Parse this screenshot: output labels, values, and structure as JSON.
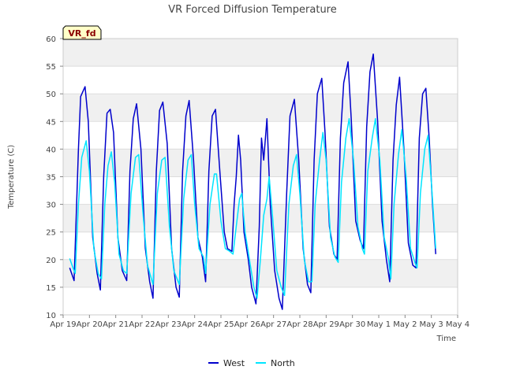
{
  "chart_data": {
    "type": "line",
    "title": "VR Forced Diffusion Temperature",
    "xlabel": "Time",
    "ylabel": "Temperature (C)",
    "badge": "VR_fd",
    "ylim": [
      10,
      60
    ],
    "yticks": [
      10,
      15,
      20,
      25,
      30,
      35,
      40,
      45,
      50,
      55,
      60
    ],
    "xlim": [
      "Apr 19",
      "May 4"
    ],
    "xtick_labels": [
      "Apr 19",
      "Apr 20",
      "Apr 21",
      "Apr 22",
      "Apr 23",
      "Apr 24",
      "Apr 25",
      "Apr 26",
      "Apr 27",
      "Apr 28",
      "Apr 29",
      "Apr 30",
      "May 1",
      "May 2",
      "May 3",
      "May 4"
    ],
    "x_unit": "days",
    "grid": true,
    "legend_position": "bottom",
    "series": [
      {
        "name": "West",
        "color": "#0000cc",
        "points": [
          [
            "2023-04-19 06:00",
            18.5
          ],
          [
            "2023-04-19 10:00",
            16.2
          ],
          [
            "2023-04-19 14:00",
            40
          ],
          [
            "2023-04-19 16:00",
            49.5
          ],
          [
            "2023-04-19 20:00",
            51.3
          ],
          [
            "2023-04-19 23:00",
            45
          ],
          [
            "2023-04-20 03:00",
            24
          ],
          [
            "2023-04-20 07:00",
            17.5
          ],
          [
            "2023-04-20 10:00",
            14.5
          ],
          [
            "2023-04-20 13:00",
            35
          ],
          [
            "2023-04-20 16:00",
            46.5
          ],
          [
            "2023-04-20 19:00",
            47.2
          ],
          [
            "2023-04-20 22:00",
            43
          ],
          [
            "2023-04-21 02:00",
            24
          ],
          [
            "2023-04-21 06:00",
            18
          ],
          [
            "2023-04-21 10:00",
            16.2
          ],
          [
            "2023-04-21 13:00",
            36
          ],
          [
            "2023-04-21 16:00",
            45.5
          ],
          [
            "2023-04-21 19:00",
            48.2
          ],
          [
            "2023-04-21 23:00",
            40
          ],
          [
            "2023-04-22 03:00",
            22
          ],
          [
            "2023-04-22 07:00",
            16
          ],
          [
            "2023-04-22 10:00",
            13
          ],
          [
            "2023-04-22 13:00",
            36
          ],
          [
            "2023-04-22 16:00",
            47
          ],
          [
            "2023-04-22 19:00",
            48.5
          ],
          [
            "2023-04-22 23:00",
            41
          ],
          [
            "2023-04-23 03:00",
            22
          ],
          [
            "2023-04-23 07:00",
            15
          ],
          [
            "2023-04-23 10:00",
            13.2
          ],
          [
            "2023-04-23 13:00",
            36
          ],
          [
            "2023-04-23 16:00",
            46
          ],
          [
            "2023-04-23 19:00",
            48.8
          ],
          [
            "2023-04-23 23:00",
            38
          ],
          [
            "2023-04-24 03:00",
            24
          ],
          [
            "2023-04-24 07:00",
            20.5
          ],
          [
            "2023-04-24 10:00",
            16
          ],
          [
            "2023-04-24 13:00",
            36
          ],
          [
            "2023-04-24 16:00",
            46
          ],
          [
            "2023-04-24 19:00",
            47.2
          ],
          [
            "2023-04-24 23:00",
            36
          ],
          [
            "2023-04-25 03:00",
            25
          ],
          [
            "2023-04-25 06:00",
            22
          ],
          [
            "2023-04-25 10:00",
            21.5
          ],
          [
            "2023-04-25 12:00",
            30
          ],
          [
            "2023-04-25 14:00",
            35
          ],
          [
            "2023-04-25 16:00",
            42.5
          ],
          [
            "2023-04-25 18:00",
            38
          ],
          [
            "2023-04-25 21:00",
            25
          ],
          [
            "2023-04-26 01:00",
            20
          ],
          [
            "2023-04-26 04:00",
            15
          ],
          [
            "2023-04-26 08:00",
            12
          ],
          [
            "2023-04-26 11:00",
            26
          ],
          [
            "2023-04-26 13:00",
            42
          ],
          [
            "2023-04-26 15:00",
            38
          ],
          [
            "2023-04-26 18:00",
            45.5
          ],
          [
            "2023-04-26 21:00",
            30
          ],
          [
            "2023-04-27 01:00",
            18
          ],
          [
            "2023-04-27 05:00",
            13
          ],
          [
            "2023-04-27 08:00",
            11
          ],
          [
            "2023-04-27 12:00",
            32
          ],
          [
            "2023-04-27 15:00",
            46
          ],
          [
            "2023-04-27 19:00",
            49
          ],
          [
            "2023-04-27 23:00",
            38
          ],
          [
            "2023-04-28 03:00",
            22
          ],
          [
            "2023-04-28 07:00",
            15.5
          ],
          [
            "2023-04-28 10:00",
            14
          ],
          [
            "2023-04-28 13:00",
            38
          ],
          [
            "2023-04-28 16:00",
            50
          ],
          [
            "2023-04-28 20:00",
            52.8
          ],
          [
            "2023-04-28 23:00",
            43
          ],
          [
            "2023-04-29 03:00",
            26
          ],
          [
            "2023-04-29 07:00",
            21
          ],
          [
            "2023-04-29 10:00",
            20
          ],
          [
            "2023-04-29 13:00",
            42
          ],
          [
            "2023-04-29 16:00",
            52
          ],
          [
            "2023-04-29 20:00",
            55.8
          ],
          [
            "2023-04-29 23:00",
            45
          ],
          [
            "2023-04-30 03:00",
            27
          ],
          [
            "2023-04-30 07:00",
            23.5
          ],
          [
            "2023-04-30 10:00",
            22
          ],
          [
            "2023-04-30 13:00",
            44
          ],
          [
            "2023-04-30 16:00",
            54
          ],
          [
            "2023-04-30 19:00",
            57.2
          ],
          [
            "2023-04-30 23:00",
            45
          ],
          [
            "2023-05-01 03:00",
            27
          ],
          [
            "2023-05-01 07:00",
            20
          ],
          [
            "2023-05-01 10:00",
            16
          ],
          [
            "2023-05-01 13:00",
            38
          ],
          [
            "2023-05-01 16:00",
            48
          ],
          [
            "2023-05-01 19:00",
            53
          ],
          [
            "2023-05-01 23:00",
            40
          ],
          [
            "2023-05-02 03:00",
            23
          ],
          [
            "2023-05-02 07:00",
            19
          ],
          [
            "2023-05-02 10:00",
            18.5
          ],
          [
            "2023-05-02 13:00",
            42
          ],
          [
            "2023-05-02 16:00",
            50
          ],
          [
            "2023-05-02 19:00",
            51
          ],
          [
            "2023-05-02 22:00",
            42
          ],
          [
            "2023-05-03 01:00",
            30
          ],
          [
            "2023-05-03 04:00",
            21
          ]
        ]
      },
      {
        "name": "North",
        "color": "#00e5ff",
        "points": [
          [
            "2023-04-19 06:00",
            20.2
          ],
          [
            "2023-04-19 09:00",
            18.5
          ],
          [
            "2023-04-19 11:00",
            17.5
          ],
          [
            "2023-04-19 14:00",
            30
          ],
          [
            "2023-04-19 17:00",
            38.5
          ],
          [
            "2023-04-19 21:00",
            41.5
          ],
          [
            "2023-04-20 00:00",
            36
          ],
          [
            "2023-04-20 04:00",
            22
          ],
          [
            "2023-04-20 08:00",
            17.5
          ],
          [
            "2023-04-20 11:00",
            16.5
          ],
          [
            "2023-04-20 14:00",
            30
          ],
          [
            "2023-04-20 17:00",
            37
          ],
          [
            "2023-04-20 20:00",
            39.5
          ],
          [
            "2023-04-20 23:00",
            34
          ],
          [
            "2023-04-21 03:00",
            21
          ],
          [
            "2023-04-21 07:00",
            18
          ],
          [
            "2023-04-21 10:00",
            17.5
          ],
          [
            "2023-04-21 14:00",
            32
          ],
          [
            "2023-04-21 18:00",
            38.5
          ],
          [
            "2023-04-21 21:00",
            39
          ],
          [
            "2023-04-22 01:00",
            28
          ],
          [
            "2023-04-22 05:00",
            19
          ],
          [
            "2023-04-22 10:00",
            15.5
          ],
          [
            "2023-04-22 14:00",
            32
          ],
          [
            "2023-04-22 18:00",
            38
          ],
          [
            "2023-04-22 21:00",
            38.5
          ],
          [
            "2023-04-23 01:00",
            26
          ],
          [
            "2023-04-23 05:00",
            18
          ],
          [
            "2023-04-23 10:00",
            15.5
          ],
          [
            "2023-04-23 14:00",
            31
          ],
          [
            "2023-04-23 18:00",
            38
          ],
          [
            "2023-04-23 21:00",
            39
          ],
          [
            "2023-04-24 00:00",
            30
          ],
          [
            "2023-04-24 04:00",
            22
          ],
          [
            "2023-04-24 08:00",
            20.5
          ],
          [
            "2023-04-24 10:00",
            17.5
          ],
          [
            "2023-04-24 14:00",
            30
          ],
          [
            "2023-04-24 18:00",
            35.5
          ],
          [
            "2023-04-24 20:00",
            35.5
          ],
          [
            "2023-04-25 00:00",
            27
          ],
          [
            "2023-04-25 04:00",
            22
          ],
          [
            "2023-04-25 08:00",
            21.5
          ],
          [
            "2023-04-25 11:00",
            21
          ],
          [
            "2023-04-25 14:00",
            26
          ],
          [
            "2023-04-25 17:00",
            31
          ],
          [
            "2023-04-25 19:00",
            32
          ],
          [
            "2023-04-25 22:00",
            25
          ],
          [
            "2023-04-26 02:00",
            20
          ],
          [
            "2023-04-26 06:00",
            15
          ],
          [
            "2023-04-26 09:00",
            13
          ],
          [
            "2023-04-26 12:00",
            20
          ],
          [
            "2023-04-26 15:00",
            28
          ],
          [
            "2023-04-26 18:00",
            31
          ],
          [
            "2023-04-26 20:00",
            35
          ],
          [
            "2023-04-26 23:00",
            28
          ],
          [
            "2023-04-27 03:00",
            18
          ],
          [
            "2023-04-27 07:00",
            15
          ],
          [
            "2023-04-27 10:00",
            13.5
          ],
          [
            "2023-04-27 14:00",
            30
          ],
          [
            "2023-04-27 18:00",
            37
          ],
          [
            "2023-04-27 21:00",
            39
          ],
          [
            "2023-04-28 00:00",
            32
          ],
          [
            "2023-04-28 04:00",
            20
          ],
          [
            "2023-04-28 08:00",
            16
          ],
          [
            "2023-04-28 11:00",
            16
          ],
          [
            "2023-04-28 14:00",
            30
          ],
          [
            "2023-04-28 18:00",
            38
          ],
          [
            "2023-04-28 21:00",
            43
          ],
          [
            "2023-04-29 00:00",
            38
          ],
          [
            "2023-04-29 04:00",
            24
          ],
          [
            "2023-04-29 08:00",
            20.5
          ],
          [
            "2023-04-29 11:00",
            19.5
          ],
          [
            "2023-04-29 14:00",
            34
          ],
          [
            "2023-04-29 18:00",
            42
          ],
          [
            "2023-04-29 21:00",
            45.5
          ],
          [
            "2023-04-30 01:00",
            38
          ],
          [
            "2023-04-30 05:00",
            26
          ],
          [
            "2023-04-30 09:00",
            22
          ],
          [
            "2023-04-30 11:00",
            21
          ],
          [
            "2023-04-30 14:00",
            36
          ],
          [
            "2023-04-30 18:00",
            42
          ],
          [
            "2023-04-30 21:00",
            45.5
          ],
          [
            "2023-05-01 01:00",
            38
          ],
          [
            "2023-05-01 05:00",
            24
          ],
          [
            "2023-05-01 09:00",
            20
          ],
          [
            "2023-05-01 11:00",
            16.5
          ],
          [
            "2023-05-01 14:00",
            30
          ],
          [
            "2023-05-01 18:00",
            39
          ],
          [
            "2023-05-01 21:00",
            43.5
          ],
          [
            "2023-05-02 01:00",
            35
          ],
          [
            "2023-05-02 05:00",
            22
          ],
          [
            "2023-05-02 09:00",
            19.5
          ],
          [
            "2023-05-02 11:00",
            18.5
          ],
          [
            "2023-05-02 14:00",
            32
          ],
          [
            "2023-05-02 18:00",
            40
          ],
          [
            "2023-05-02 21:00",
            42.5
          ],
          [
            "2023-05-03 00:00",
            34
          ],
          [
            "2023-05-03 04:00",
            22
          ]
        ]
      }
    ]
  }
}
